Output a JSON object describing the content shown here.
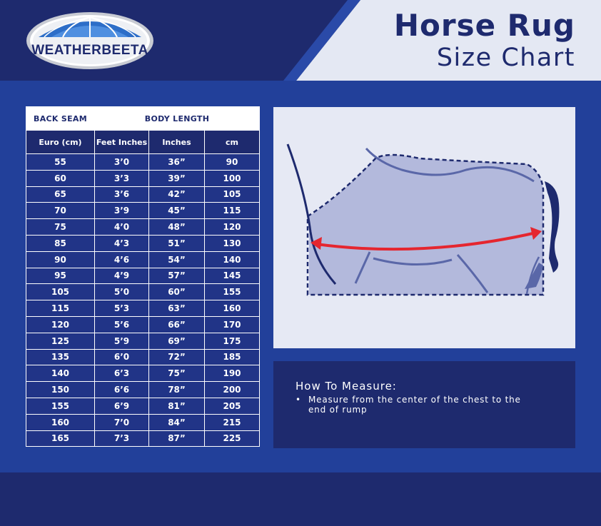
{
  "brand": {
    "logo_text": "WEATHERBEETA"
  },
  "title": {
    "main": "Horse Rug",
    "sub": "Size Chart"
  },
  "table": {
    "group_headers": [
      "BACK SEAM",
      "BODY LENGTH"
    ],
    "columns": [
      "Euro (cm)",
      "Feet Inches",
      "Inches",
      "cm"
    ],
    "rows": [
      [
        "55",
        "3’0",
        "36”",
        "90"
      ],
      [
        "60",
        "3’3",
        "39”",
        "100"
      ],
      [
        "65",
        "3’6",
        "42”",
        "105"
      ],
      [
        "70",
        "3’9",
        "45”",
        "115"
      ],
      [
        "75",
        "4’0",
        "48”",
        "120"
      ],
      [
        "85",
        "4’3",
        "51”",
        "130"
      ],
      [
        "90",
        "4’6",
        "54”",
        "140"
      ],
      [
        "95",
        "4’9",
        "57”",
        "145"
      ],
      [
        "105",
        "5’0",
        "60”",
        "155"
      ],
      [
        "115",
        "5’3",
        "63”",
        "160"
      ],
      [
        "120",
        "5’6",
        "66”",
        "170"
      ],
      [
        "125",
        "5’9",
        "69”",
        "175"
      ],
      [
        "135",
        "6’0",
        "72”",
        "185"
      ],
      [
        "140",
        "6’3",
        "75”",
        "190"
      ],
      [
        "150",
        "6’6",
        "78”",
        "200"
      ],
      [
        "155",
        "6’9",
        "81”",
        "205"
      ],
      [
        "160",
        "7’0",
        "84”",
        "215"
      ],
      [
        "165",
        "7’3",
        "87”",
        "225"
      ]
    ]
  },
  "how_to_measure": {
    "title": "How To Measure:",
    "items": [
      "Measure from the center of the chest to the end of rump"
    ]
  },
  "colors": {
    "navy": "#1e2a6e",
    "royal_blue": "#22409a",
    "table_cell": "#213487",
    "diagram_bg": "#e6e9f4",
    "rug_fill": "#b3b9dc",
    "measure_arrow": "#e5262f",
    "header_light": "#e4e8f3"
  }
}
